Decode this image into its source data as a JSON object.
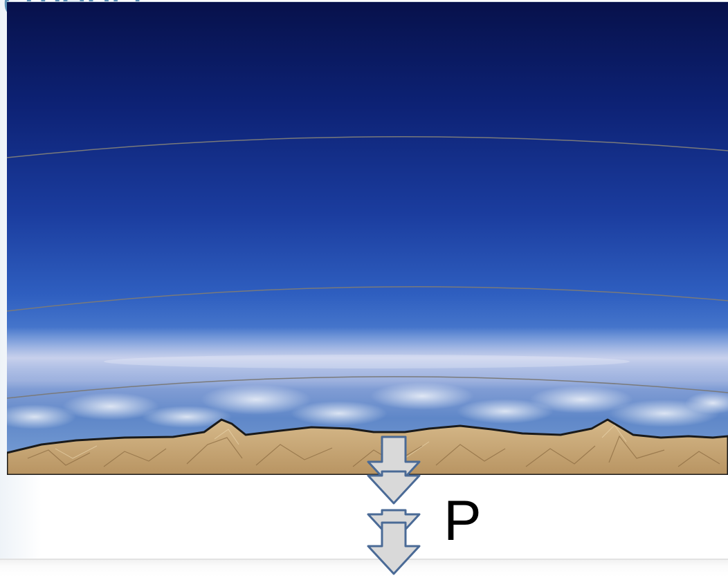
{
  "slide": {
    "title_fragment": "сферы:"
  },
  "diagram": {
    "pressure_label": "P",
    "colors": {
      "title": "#5e93b8",
      "sky_top": "#07114b",
      "sky_mid": "#1b3d9f",
      "sky_low": "#4f7fd0",
      "haze": "#d8dff0",
      "ground": "#c9a979",
      "arrow_fill": "#d9d9d9",
      "arrow_outline": "#4a6a96",
      "layer_line": "#7a7a7a"
    },
    "icons": [
      "down-arrow-icon"
    ]
  }
}
